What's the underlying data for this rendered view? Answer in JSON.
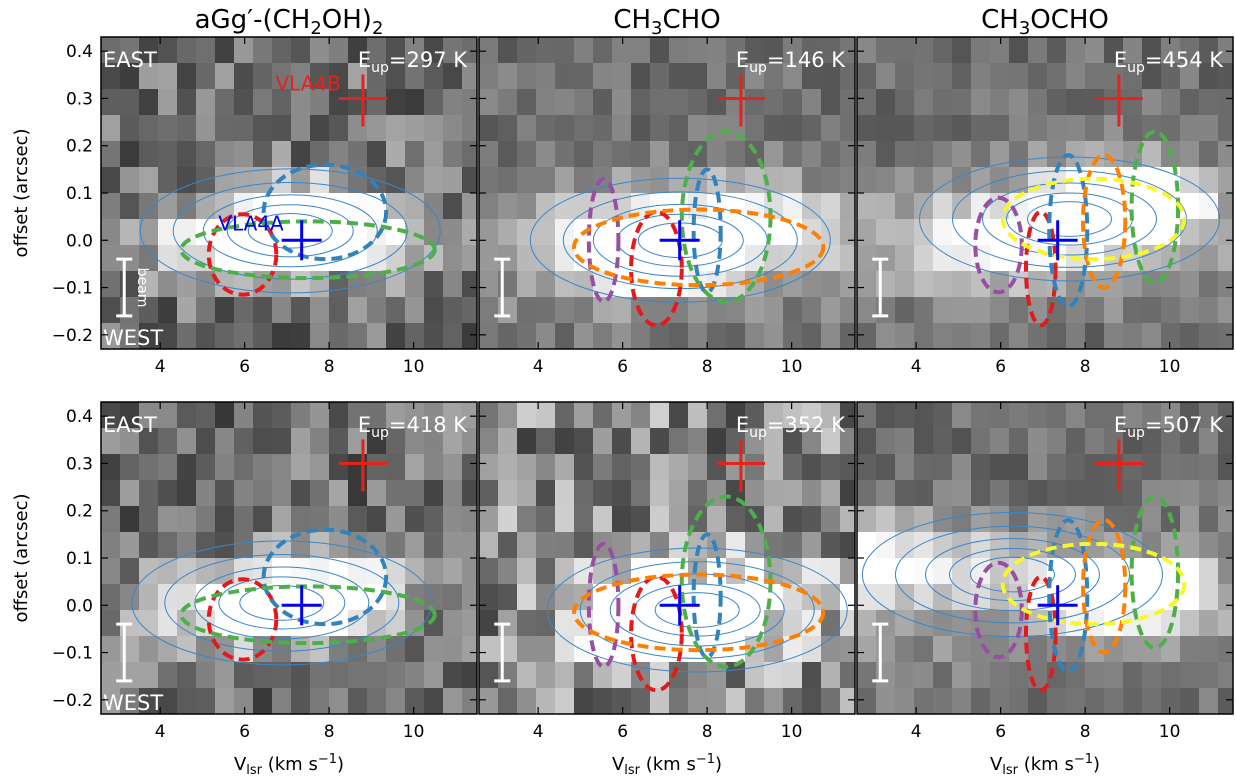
{
  "figure": {
    "column_titles": [
      {
        "pre": "aGg′-(CH",
        "sub1": "2",
        "mid": "OH)",
        "sub2": "2"
      },
      {
        "pre": "CH",
        "sub1": "3",
        "mid": "CHO",
        "sub2": ""
      },
      {
        "pre": "CH",
        "sub1": "3",
        "mid": "OCHO",
        "sub2": ""
      }
    ],
    "ylabel": "offset (arcsec)",
    "xlabel": {
      "pre": "V",
      "sub": "lsr",
      "mid": " (km s",
      "sup": "−1",
      "post": ")"
    },
    "east_label": "EAST",
    "west_label": "WEST",
    "beam_label": "beam",
    "source_labels": {
      "vla4a": "VLA4A",
      "vla4b": "VLA4B"
    },
    "eup_prefix": "E",
    "eup_sub": "up",
    "eup_equals": "="
  },
  "chart_data": {
    "type": "heatmap",
    "layout": "2x3 position-velocity diagrams",
    "xlim": [
      2.6,
      11.5
    ],
    "ylim": [
      -0.23,
      0.43
    ],
    "xticks": [
      4,
      6,
      8,
      10
    ],
    "yticks": [
      -0.2,
      -0.1,
      0.0,
      0.1,
      0.2,
      0.3,
      0.4
    ],
    "colors": {
      "vla4a": "#0000ee",
      "vla4b": "#e8211d",
      "contour": "#3a86c8",
      "red": "#e31a1c",
      "blue": "#3182bd",
      "green": "#4daf4a",
      "purple": "#984ea3",
      "orange": "#ff7f00",
      "yellow": "#f7f72b"
    },
    "markers": {
      "vla4a": {
        "x": 7.35,
        "y": 0.0
      },
      "vla4b": {
        "x": 8.8,
        "y": 0.3
      }
    },
    "beam_bar": {
      "x": 3.15,
      "y0": -0.16,
      "y1": -0.04
    },
    "panels": [
      {
        "molecule": "aGg'-(CH2OH)2",
        "row": 0,
        "col": 0,
        "eup": "297 K",
        "bg": "noise",
        "show_east_west": true,
        "show_beam_label": true,
        "show_source_labels": true,
        "peak": {
          "x": 7.8,
          "y": 0.04
        },
        "ridge": [
          6.2,
          0.0
        ],
        "ellipses": [
          {
            "color": "red",
            "cx": 5.95,
            "cy": -0.03,
            "rx": 0.8,
            "ry": 0.085
          },
          {
            "color": "blue",
            "cx": 7.9,
            "cy": 0.06,
            "rx": 1.45,
            "ry": 0.1
          },
          {
            "color": "green",
            "cx": 7.5,
            "cy": -0.02,
            "rx": 3.0,
            "ry": 0.06
          }
        ]
      },
      {
        "molecule": "CH3CHO",
        "row": 0,
        "col": 1,
        "eup": "146 K",
        "bg": "smooth",
        "show_east_west": false,
        "show_beam_label": false,
        "show_source_labels": false,
        "peak": {
          "x": 6.6,
          "y": -0.03
        },
        "ridge": [
          8.3,
          0.03
        ],
        "ellipses": [
          {
            "color": "purple",
            "cx": 5.55,
            "cy": 0.0,
            "rx": 0.35,
            "ry": 0.13
          },
          {
            "color": "red",
            "cx": 6.8,
            "cy": -0.06,
            "rx": 0.6,
            "ry": 0.12
          },
          {
            "color": "blue",
            "cx": 8.0,
            "cy": 0.02,
            "rx": 0.32,
            "ry": 0.13
          },
          {
            "color": "green",
            "cx": 8.45,
            "cy": 0.05,
            "rx": 1.05,
            "ry": 0.18
          },
          {
            "color": "orange",
            "cx": 7.8,
            "cy": -0.015,
            "rx": 2.95,
            "ry": 0.08
          }
        ]
      },
      {
        "molecule": "CH3OCHO",
        "row": 0,
        "col": 2,
        "eup": "454 K",
        "bg": "smooth",
        "show_east_west": false,
        "show_beam_label": false,
        "show_source_labels": false,
        "peak": {
          "x": 8.8,
          "y": 0.09
        },
        "ridge": [
          6.2,
          0.0
        ],
        "ellipses": [
          {
            "color": "purple",
            "cx": 5.95,
            "cy": -0.01,
            "rx": 0.55,
            "ry": 0.1
          },
          {
            "color": "red",
            "cx": 6.95,
            "cy": -0.06,
            "rx": 0.35,
            "ry": 0.12
          },
          {
            "color": "blue",
            "cx": 7.6,
            "cy": 0.02,
            "rx": 0.45,
            "ry": 0.16
          },
          {
            "color": "orange",
            "cx": 8.45,
            "cy": 0.04,
            "rx": 0.5,
            "ry": 0.14
          },
          {
            "color": "green",
            "cx": 9.65,
            "cy": 0.07,
            "rx": 0.55,
            "ry": 0.16
          },
          {
            "color": "yellow",
            "cx": 8.2,
            "cy": 0.045,
            "rx": 2.15,
            "ry": 0.085
          }
        ]
      },
      {
        "molecule": "aGg'-(CH2OH)2",
        "row": 1,
        "col": 0,
        "eup": "418 K",
        "bg": "noise",
        "show_east_west": true,
        "show_beam_label": false,
        "show_source_labels": false,
        "peak": {
          "x": 7.6,
          "y": 0.02
        },
        "ridge": [
          6.0,
          -0.01
        ],
        "ellipses": [
          {
            "color": "red",
            "cx": 5.95,
            "cy": -0.03,
            "rx": 0.8,
            "ry": 0.085
          },
          {
            "color": "blue",
            "cx": 7.9,
            "cy": 0.06,
            "rx": 1.45,
            "ry": 0.1
          },
          {
            "color": "green",
            "cx": 7.5,
            "cy": -0.02,
            "rx": 3.0,
            "ry": 0.06
          }
        ]
      },
      {
        "molecule": "CH3CHO",
        "row": 1,
        "col": 1,
        "eup": "352 K",
        "bg": "streaky",
        "show_east_west": false,
        "show_beam_label": false,
        "show_source_labels": false,
        "peak": {
          "x": 7.0,
          "y": -0.04
        },
        "ridge": [
          8.7,
          0.02
        ],
        "ellipses": [
          {
            "color": "purple",
            "cx": 5.55,
            "cy": 0.0,
            "rx": 0.35,
            "ry": 0.13
          },
          {
            "color": "red",
            "cx": 6.8,
            "cy": -0.06,
            "rx": 0.6,
            "ry": 0.12
          },
          {
            "color": "blue",
            "cx": 8.0,
            "cy": 0.02,
            "rx": 0.32,
            "ry": 0.13
          },
          {
            "color": "green",
            "cx": 8.45,
            "cy": 0.05,
            "rx": 1.05,
            "ry": 0.18
          },
          {
            "color": "orange",
            "cx": 7.8,
            "cy": -0.015,
            "rx": 2.95,
            "ry": 0.08
          }
        ]
      },
      {
        "molecule": "CH3OCHO",
        "row": 1,
        "col": 2,
        "eup": "507 K",
        "bg": "smooth",
        "show_east_west": false,
        "show_beam_label": false,
        "show_source_labels": false,
        "peak": {
          "x": 8.8,
          "y": 0.03
        },
        "ridge": [
          3.2,
          0.1
        ],
        "ellipses": [
          {
            "color": "purple",
            "cx": 5.95,
            "cy": -0.01,
            "rx": 0.55,
            "ry": 0.1
          },
          {
            "color": "red",
            "cx": 6.95,
            "cy": -0.06,
            "rx": 0.35,
            "ry": 0.12
          },
          {
            "color": "blue",
            "cx": 7.6,
            "cy": 0.02,
            "rx": 0.45,
            "ry": 0.16
          },
          {
            "color": "orange",
            "cx": 8.45,
            "cy": 0.04,
            "rx": 0.5,
            "ry": 0.14
          },
          {
            "color": "green",
            "cx": 9.65,
            "cy": 0.07,
            "rx": 0.55,
            "ry": 0.16
          },
          {
            "color": "yellow",
            "cx": 8.2,
            "cy": 0.045,
            "rx": 2.15,
            "ry": 0.085
          }
        ]
      }
    ]
  }
}
